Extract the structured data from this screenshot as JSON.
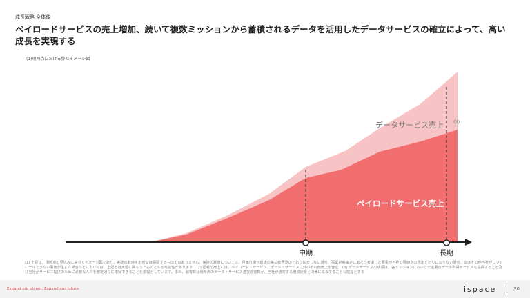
{
  "header": {
    "section": "成長戦略 全体像",
    "title": "ペイロードサービスの売上増加、続いて複数ミッションから蓄積されるデータを活用したデータサービスの確立によって、高い成長を実現する"
  },
  "figure": {
    "caption": "(1)現時点における弊社イメージ図",
    "labels": {
      "data_service": "データサービス売上",
      "data_service_note": "(3)",
      "payload_service": "ペイロードサービス売上",
      "mid_term": "中期",
      "long_term": "長期"
    }
  },
  "footnote": "(1) 上記は、現時点の見込みに基づくイメージ図であり、実際の数値を示唆又は保証するものではありません。実際の数値については、月面市場が前述の第三者予測のとおり拡大しない場合、事業計画策定にあたり考慮した要素が当社の現時点の想定どおりにならない場合、又はその他当社がコントロールできない事象が生じた場合などにおいては、上記とは大幅に異なったものとなる可能性があります　(2) 記載の売上には、ペイロード・サービス、データ・サービス以外のその他売上を含む　(3) データサービスの成長は、各ミッションにおいて一定量のデータ取得サービスを提供すること及び当社がサービス提供のために必要な人材を想定通りに確保できることを前提としています。また、顧客数は現時点のデータ・サービス潜在顧客数が、当社が想定する増加速度と同様に成長することも前提とする",
  "footer": {
    "tagline": "Expand our planet. Expand our future.",
    "logo": "ispace",
    "page": 30
  }
}
